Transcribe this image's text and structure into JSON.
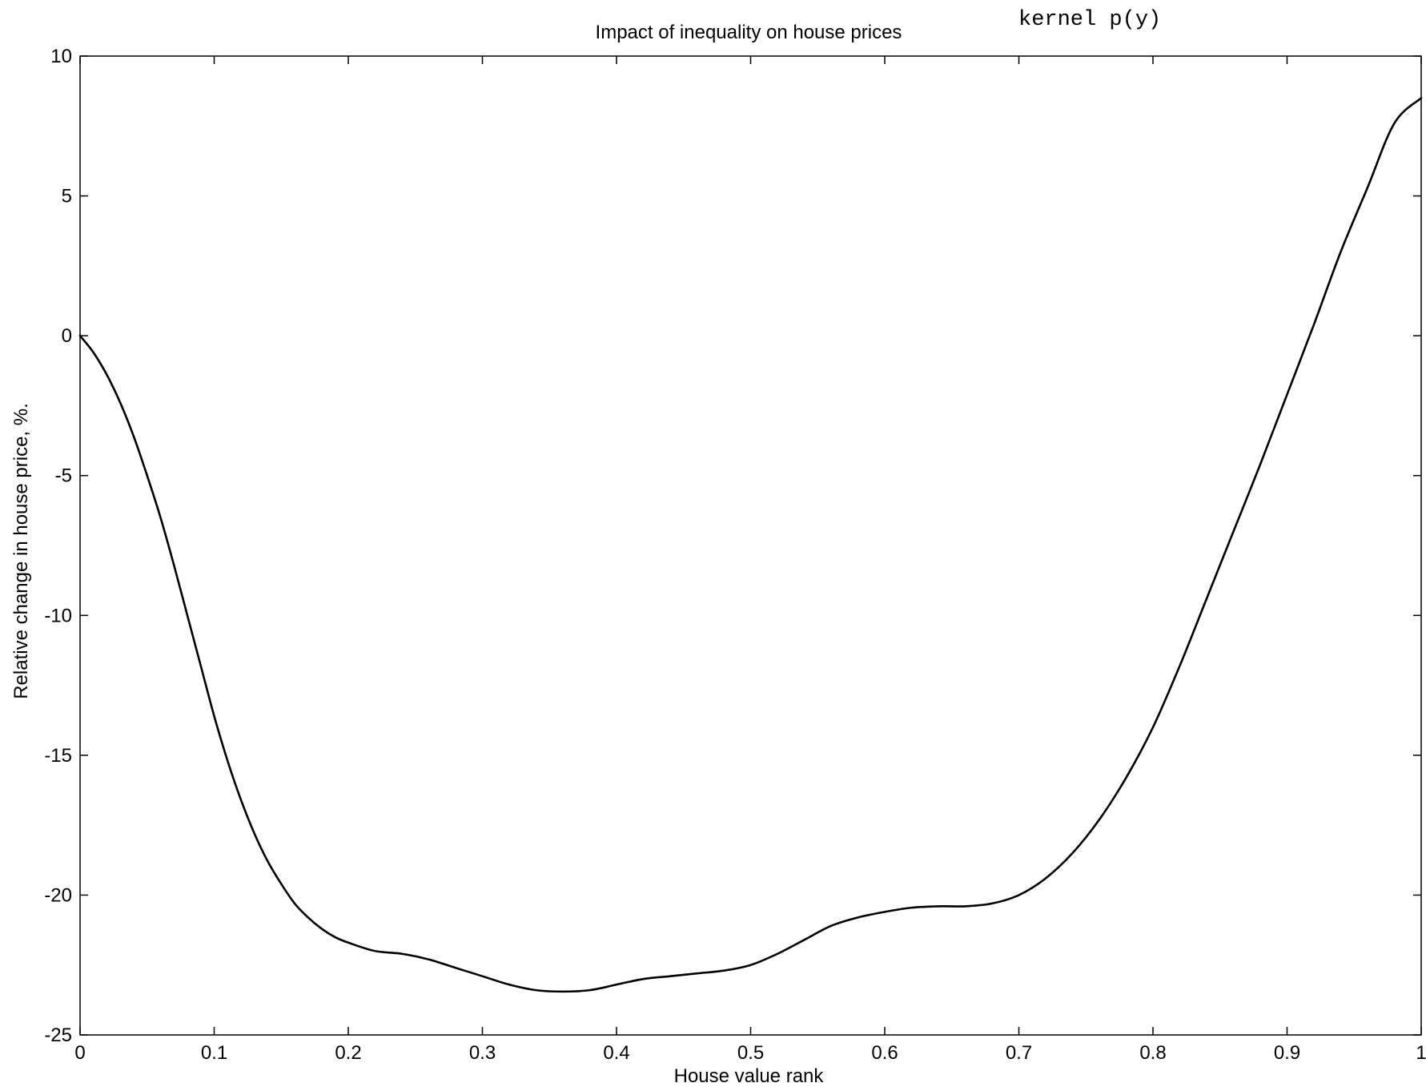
{
  "chart_data": {
    "type": "line",
    "title": "Impact of inequality on house prices",
    "annotation": "kernel p(y)",
    "xlabel": "House value rank",
    "ylabel": "Relative change in house price, %.",
    "xlim": [
      0,
      1
    ],
    "ylim": [
      -25,
      10
    ],
    "xticks": [
      "0",
      "0.1",
      "0.2",
      "0.3",
      "0.4",
      "0.5",
      "0.6",
      "0.7",
      "0.8",
      "0.9",
      "1"
    ],
    "yticks": [
      "10",
      "5",
      "0",
      "-5",
      "-10",
      "-15",
      "-20",
      "-25"
    ],
    "grid": false,
    "line_color": "#000000",
    "series": [
      {
        "x": [
          0,
          0.01,
          0.02,
          0.03,
          0.04,
          0.05,
          0.06,
          0.07,
          0.08,
          0.09,
          0.1,
          0.11,
          0.12,
          0.13,
          0.14,
          0.15,
          0.16,
          0.17,
          0.18,
          0.19,
          0.2,
          0.22,
          0.24,
          0.26,
          0.28,
          0.3,
          0.32,
          0.34,
          0.36,
          0.38,
          0.4,
          0.42,
          0.44,
          0.46,
          0.48,
          0.5,
          0.52,
          0.54,
          0.56,
          0.58,
          0.6,
          0.62,
          0.64,
          0.66,
          0.68,
          0.7,
          0.72,
          0.74,
          0.76,
          0.78,
          0.8,
          0.82,
          0.84,
          0.86,
          0.88,
          0.9,
          0.92,
          0.94,
          0.96,
          0.98,
          1.0
        ],
        "y": [
          0,
          -0.6,
          -1.4,
          -2.4,
          -3.6,
          -5.0,
          -6.5,
          -8.2,
          -10.0,
          -11.8,
          -13.6,
          -15.2,
          -16.6,
          -17.8,
          -18.8,
          -19.6,
          -20.3,
          -20.8,
          -21.2,
          -21.5,
          -21.7,
          -22.0,
          -22.1,
          -22.3,
          -22.6,
          -22.9,
          -23.2,
          -23.4,
          -23.45,
          -23.4,
          -23.2,
          -23.0,
          -22.9,
          -22.8,
          -22.7,
          -22.5,
          -22.1,
          -21.6,
          -21.1,
          -20.8,
          -20.6,
          -20.45,
          -20.4,
          -20.4,
          -20.3,
          -20.0,
          -19.4,
          -18.5,
          -17.3,
          -15.8,
          -14.0,
          -11.8,
          -9.4,
          -7.0,
          -4.6,
          -2.1,
          0.4,
          3.0,
          5.3,
          7.6,
          8.5
        ]
      }
    ]
  }
}
